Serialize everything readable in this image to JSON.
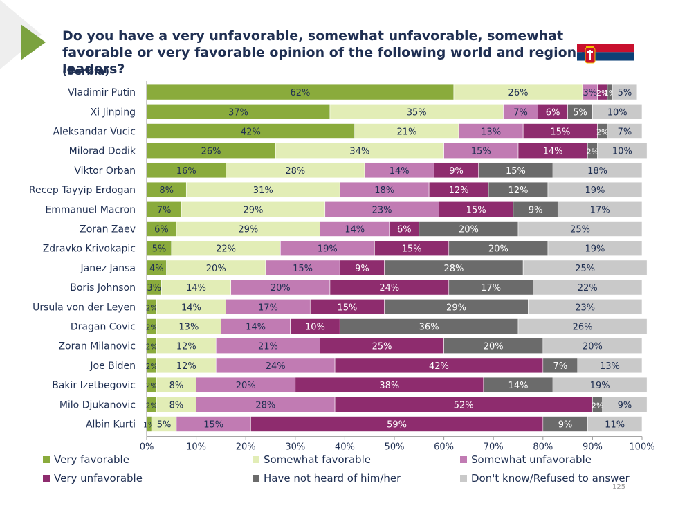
{
  "title": "Do you have a very unfavorable, somewhat unfavorable, somewhat favorable or very favorable opinion of the following world and regional leaders?",
  "subtitle": "(Serbia)",
  "page_number": "125",
  "colors": {
    "very_favorable": "#8aab3c",
    "somewhat_favorable": "#e2edb6",
    "somewhat_unfavorable": "#c17bb3",
    "very_unfavorable": "#8e2c6e",
    "not_heard": "#6b6b6b",
    "dont_know": "#c9c9c9",
    "accent": "#7ba23f",
    "flag_red": "#c8102e",
    "flag_blue": "#0c4076"
  },
  "chart_data": {
    "type": "bar",
    "orientation": "horizontal-stacked-100",
    "title": "Do you have a very unfavorable, somewhat unfavorable, somewhat favorable or very favorable opinion of the following world and regional leaders?",
    "xlim": [
      0,
      100
    ],
    "xticks": [
      "0%",
      "10%",
      "20%",
      "30%",
      "40%",
      "50%",
      "60%",
      "70%",
      "80%",
      "90%",
      "100%"
    ],
    "categories": [
      "Vladimir Putin",
      "Xi Jinping",
      "Aleksandar Vucic",
      "Milorad Dodik",
      "Viktor Orban",
      "Recep Tayyip Erdogan",
      "Emmanuel Macron",
      "Zoran Zaev",
      "Zdravko Krivokapic",
      "Janez Jansa",
      "Boris Johnson",
      "Ursula von der Leyen",
      "Dragan Covic",
      "Zoran Milanovic",
      "Joe Biden",
      "Bakir Izetbegovic",
      "Milo Djukanovic",
      "Albin Kurti"
    ],
    "series": [
      {
        "name": "Very favorable",
        "key": "very_favorable",
        "values": [
          62,
          37,
          42,
          26,
          16,
          8,
          7,
          6,
          5,
          4,
          3,
          2,
          2,
          2,
          2,
          2,
          2,
          1
        ]
      },
      {
        "name": "Somewhat favorable",
        "key": "somewhat_favorable",
        "values": [
          26,
          35,
          21,
          34,
          28,
          31,
          29,
          29,
          22,
          20,
          14,
          14,
          13,
          12,
          12,
          8,
          8,
          5
        ]
      },
      {
        "name": "Somewhat unfavorable",
        "key": "somewhat_unfavorable",
        "values": [
          3,
          7,
          13,
          15,
          14,
          18,
          23,
          14,
          19,
          15,
          20,
          17,
          14,
          21,
          24,
          20,
          28,
          15
        ]
      },
      {
        "name": "Very unfavorable",
        "key": "very_unfavorable",
        "values": [
          2,
          6,
          15,
          14,
          9,
          12,
          15,
          6,
          15,
          9,
          24,
          15,
          10,
          25,
          42,
          38,
          52,
          59
        ]
      },
      {
        "name": "Have not heard of him/her",
        "key": "not_heard",
        "values": [
          1,
          5,
          2,
          2,
          15,
          12,
          9,
          20,
          20,
          28,
          17,
          29,
          36,
          20,
          7,
          14,
          2,
          9
        ]
      },
      {
        "name": "Don't know/Refused to answer",
        "key": "dont_know",
        "values": [
          5,
          10,
          7,
          10,
          18,
          19,
          17,
          25,
          19,
          25,
          22,
          23,
          26,
          20,
          13,
          19,
          9,
          11
        ]
      }
    ]
  }
}
